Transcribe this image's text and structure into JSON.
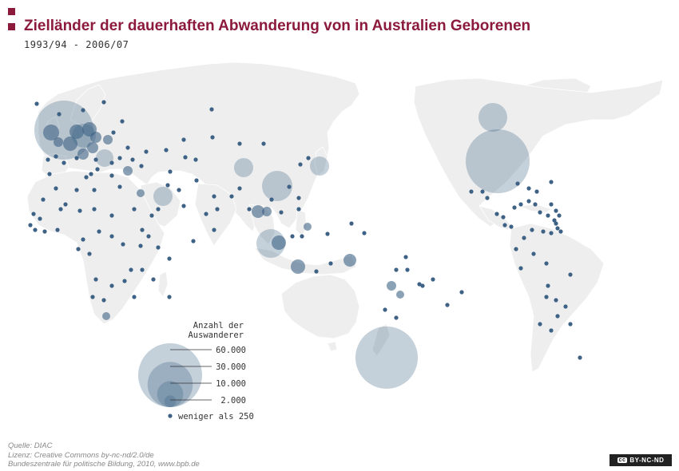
{
  "header": {
    "title": "Zielländer der dauerhaften Abwanderung von in Australien Geborenen",
    "subtitle": "1993/94 - 2006/07"
  },
  "colors": {
    "land": "#eeeeee",
    "border": "#ffffff",
    "bubble": "#3d6285",
    "accent": "#8b1a3c"
  },
  "legend": {
    "title_line1": "Anzahl der",
    "title_line2": "Auswanderer",
    "items": [
      {
        "label": "60.000",
        "value": 60000
      },
      {
        "label": "30.000",
        "value": 30000
      },
      {
        "label": "10.000",
        "value": 10000
      },
      {
        "label": "2.000",
        "value": 2000
      },
      {
        "label": "weniger als 250",
        "value": 250
      }
    ]
  },
  "credits": {
    "line1": "Quelle: DIAC",
    "line2": "Lizenz: Creative Commons by-nc-nd/2.0/de",
    "line3": "Bundeszentrale für politische Bildung, 2010, www.bpb.de"
  },
  "license_badge": "BY-NC-ND",
  "license_icon": "cc"
}
